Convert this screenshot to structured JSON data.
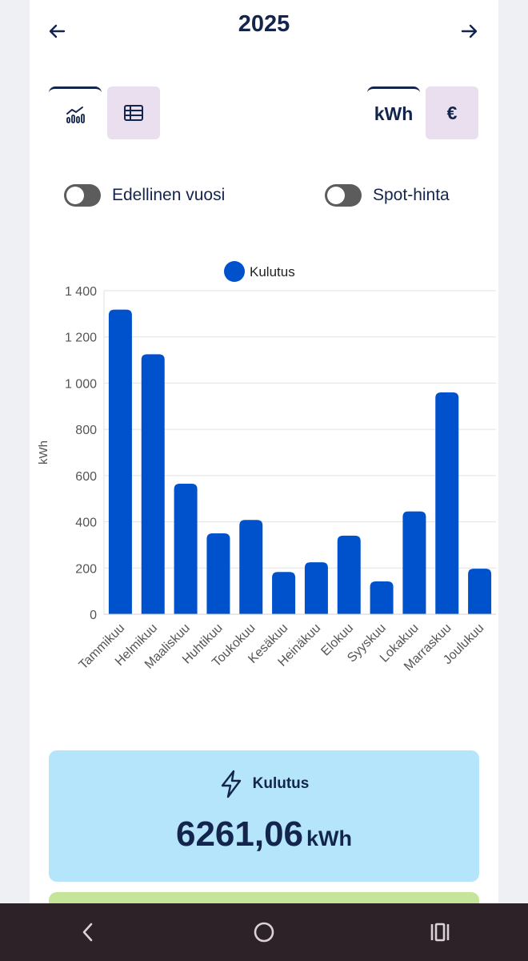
{
  "header": {
    "year": "2025"
  },
  "view_toggle": {
    "unit_kwh": "kWh",
    "unit_eur": "€"
  },
  "toggles": {
    "previous_year": "Edellinen vuosi",
    "spot_price": "Spot-hinta"
  },
  "chart_data": {
    "type": "bar",
    "legend": [
      "Kulutus"
    ],
    "legend_position": "top",
    "ylabel": "kWh",
    "xlabel": "",
    "ylim": [
      0,
      1400
    ],
    "yticks": [
      "0",
      "200",
      "400",
      "600",
      "800",
      "1 000",
      "1 200",
      "1 400"
    ],
    "grid": true,
    "color": "#0052cc",
    "categories": [
      "Tammikuu",
      "Helmikuu",
      "Maaliskuu",
      "Huhtikuu",
      "Toukokuu",
      "Kesäkuu",
      "Heinäkuu",
      "Elokuu",
      "Syyskuu",
      "Lokakuu",
      "Marraskuu",
      "Joulukuu"
    ],
    "series": [
      {
        "name": "Kulutus",
        "values": [
          1318,
          1125,
          565,
          350,
          408,
          183,
          225,
          340,
          142,
          445,
          960,
          197
        ]
      }
    ]
  },
  "summary": {
    "title": "Kulutus",
    "value": "6261,06",
    "unit": "kWh"
  }
}
